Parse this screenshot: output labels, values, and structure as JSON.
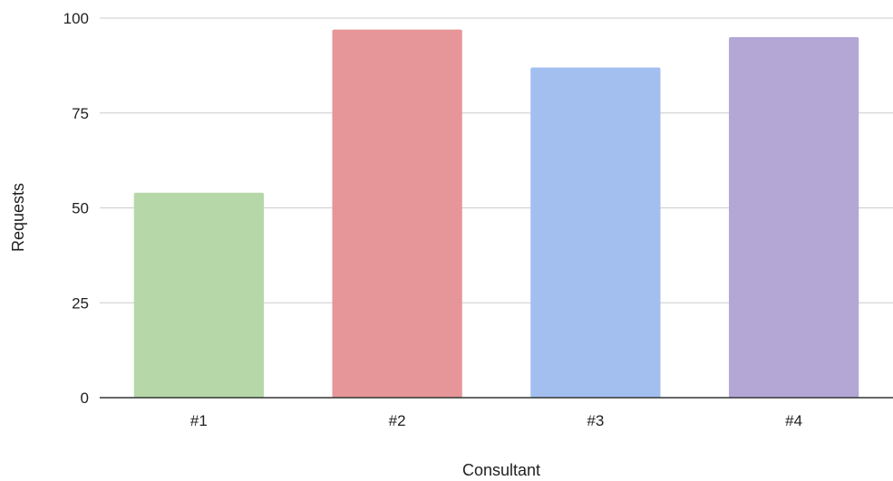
{
  "chart_data": {
    "type": "bar",
    "title": "",
    "xlabel": "Consultant",
    "ylabel": "Requests",
    "categories": [
      "#1",
      "#2",
      "#3",
      "#4"
    ],
    "values": [
      54,
      97,
      87,
      95
    ],
    "colors": [
      "#b6d7a8",
      "#e69698",
      "#a3bff0",
      "#b4a7d6"
    ],
    "ylim": [
      0,
      100
    ],
    "yticks": [
      0,
      25,
      50,
      75,
      100
    ],
    "grid": true,
    "legend": "none",
    "gridline_color": "#cccccc",
    "baseline_color": "#333333"
  }
}
